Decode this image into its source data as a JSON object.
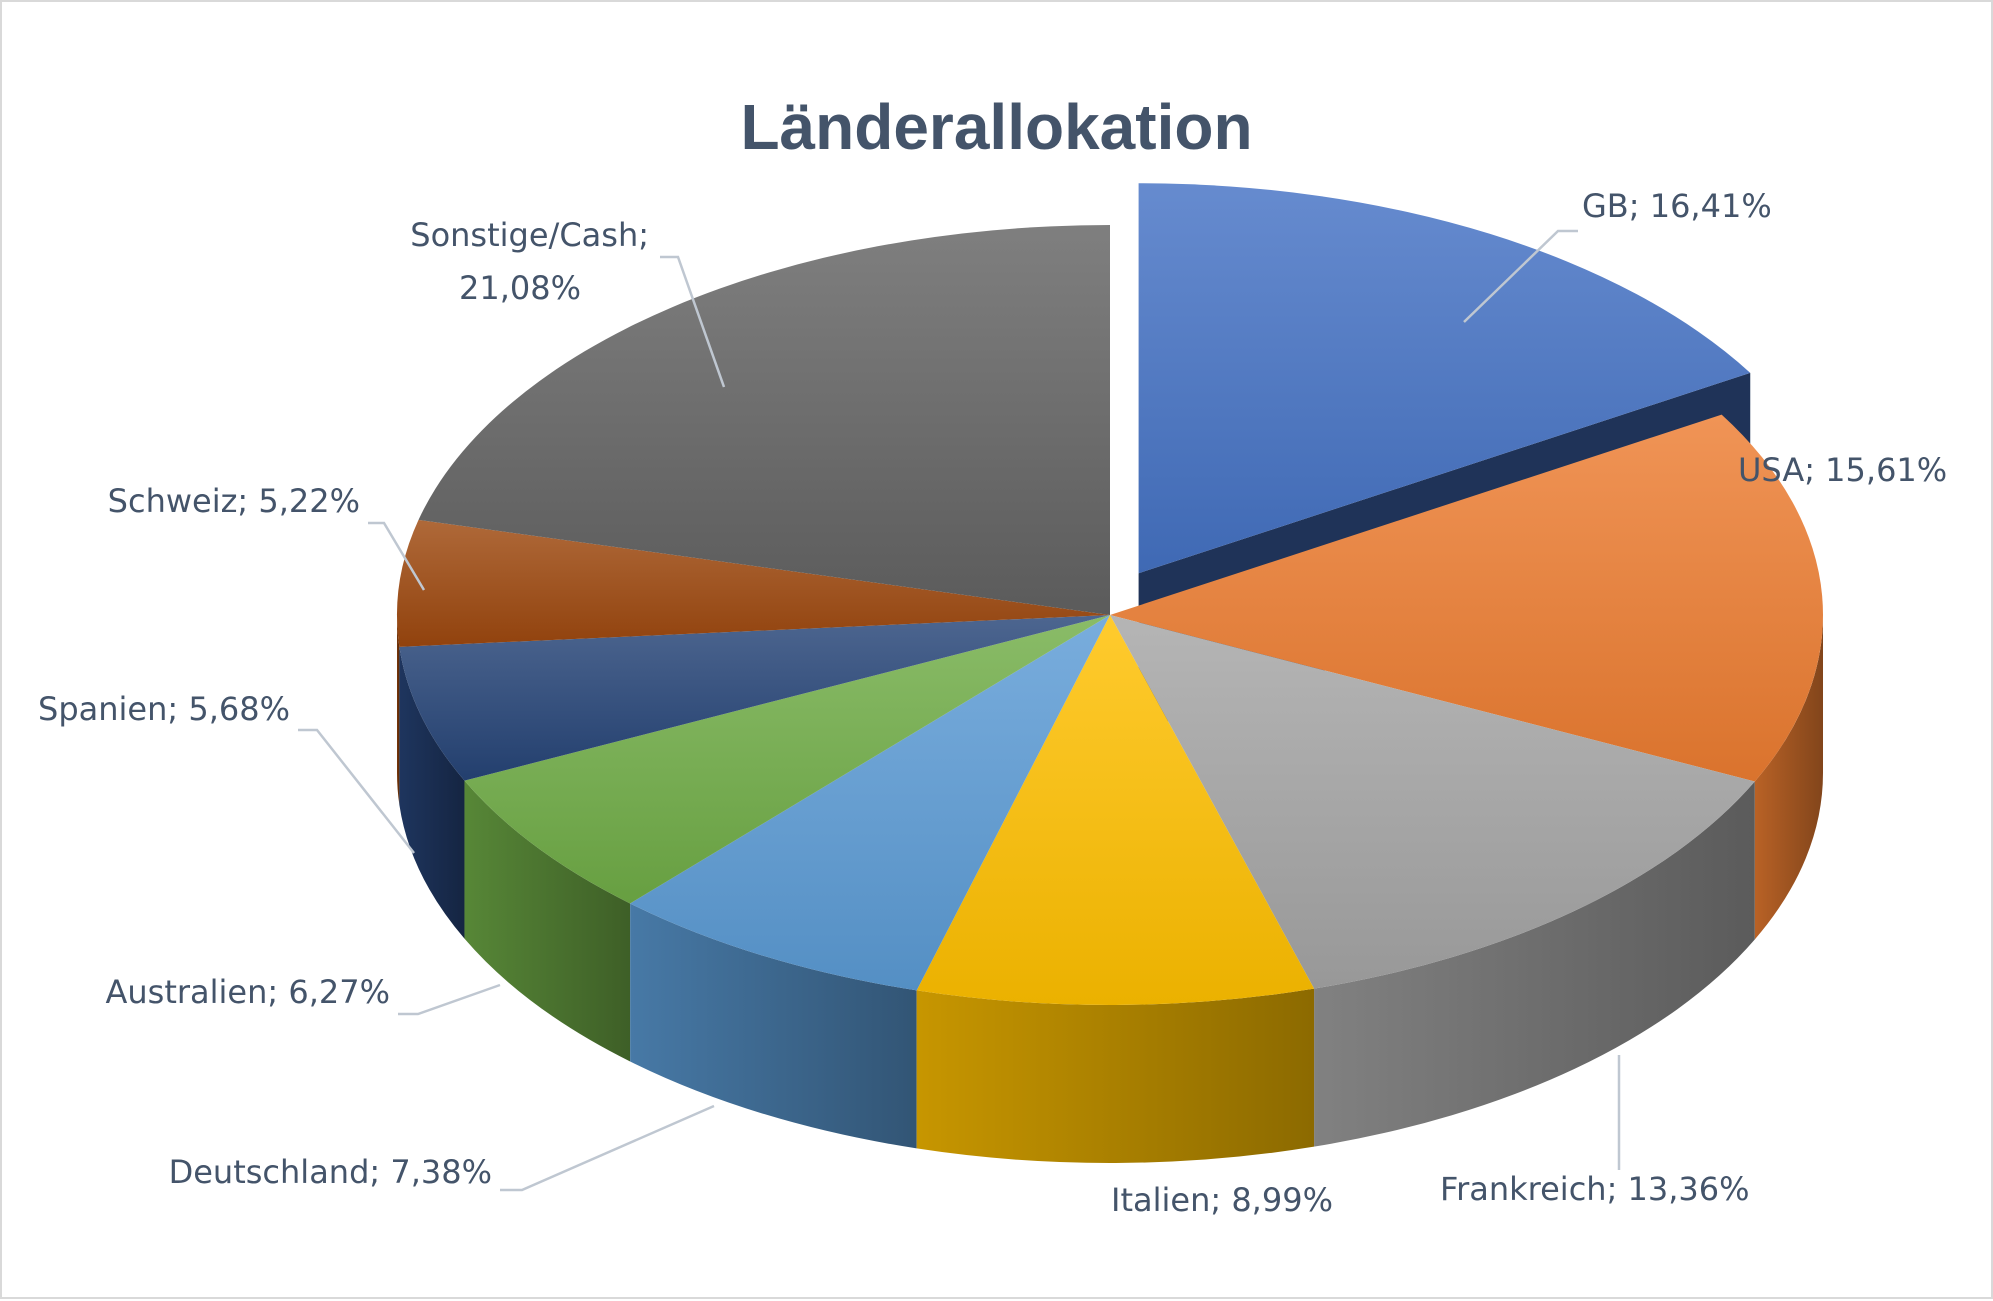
{
  "chart_data": {
    "type": "pie",
    "title": "Länderallokation",
    "label_separator": "; ",
    "slices": [
      {
        "name": "GB",
        "value": 16.41,
        "label": "16,41%",
        "color": "#4472c4",
        "exploded": true
      },
      {
        "name": "USA",
        "value": 15.61,
        "label": "15,61%",
        "color": "#ed7d31"
      },
      {
        "name": "Frankreich",
        "value": 13.36,
        "label": "13,36%",
        "color": "#a5a5a5"
      },
      {
        "name": "Italien",
        "value": 8.99,
        "label": "8,99%",
        "color": "#ffc000"
      },
      {
        "name": "Deutschland",
        "value": 7.38,
        "label": "7,38%",
        "color": "#5b9bd5"
      },
      {
        "name": "Australien",
        "value": 6.27,
        "label": "6,27%",
        "color": "#70ad47"
      },
      {
        "name": "Spanien",
        "value": 5.68,
        "label": "5,68%",
        "color": "#264478"
      },
      {
        "name": "Schweiz",
        "value": 5.22,
        "label": "5,22%",
        "color": "#9e480e"
      },
      {
        "name": "Sonstige/Cash",
        "value": 21.08,
        "label": "21,08%",
        "color": "#636363"
      }
    ]
  }
}
